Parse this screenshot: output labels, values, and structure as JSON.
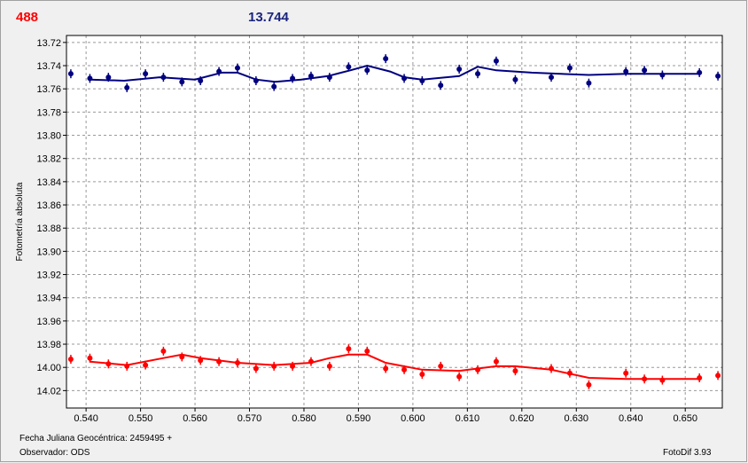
{
  "header": {
    "left": "488",
    "right": "13.744"
  },
  "footer": {
    "axis_note": "Fecha Juliana Geocéntrica: 2459495 +",
    "observer": "Observador: ODS",
    "software": "FotoDif 3.93"
  },
  "chart_data": {
    "type": "scatter",
    "ylabel": "Fotometría absoluta",
    "grid": true,
    "xlim": [
      0.5364,
      0.6568
    ],
    "ylim": [
      14.035,
      13.714
    ],
    "xticks": [
      {
        "value": 0.54,
        "label": "0.540"
      },
      {
        "value": 0.55,
        "label": "0.550"
      },
      {
        "value": 0.56,
        "label": "0.560"
      },
      {
        "value": 0.57,
        "label": "0.570"
      },
      {
        "value": 0.58,
        "label": "0.580"
      },
      {
        "value": 0.59,
        "label": "0.590"
      },
      {
        "value": 0.6,
        "label": "0.600"
      },
      {
        "value": 0.61,
        "label": "0.610"
      },
      {
        "value": 0.62,
        "label": "0.620"
      },
      {
        "value": 0.63,
        "label": "0.630"
      },
      {
        "value": 0.64,
        "label": "0.640"
      },
      {
        "value": 0.65,
        "label": "0.650"
      }
    ],
    "yticks": [
      13.72,
      13.74,
      13.76,
      13.78,
      {
        "value": 13.8,
        "label": "13.80"
      },
      13.82,
      13.84,
      13.86,
      13.88,
      {
        "value": 13.9,
        "label": "13.90"
      },
      13.92,
      13.94,
      13.96,
      13.98,
      {
        "value": 14.0,
        "label": "14.00"
      },
      14.02
    ],
    "series": [
      {
        "color": "#000080",
        "mode": "markers",
        "x": [
          0.5372,
          0.5407,
          0.5441,
          0.5475,
          0.5509,
          0.5542,
          0.5576,
          0.561,
          0.5644,
          0.5678,
          0.5712,
          0.5745,
          0.5779,
          0.5813,
          0.5847,
          0.5882,
          0.5916,
          0.595,
          0.5984,
          0.6017,
          0.6051,
          0.6085,
          0.6119,
          0.6153,
          0.6188,
          0.6254,
          0.6288,
          0.6323,
          0.6391,
          0.6425,
          0.6458,
          0.6526,
          0.656
        ],
        "values": [
          13.747,
          13.751,
          13.75,
          13.759,
          13.747,
          13.75,
          13.754,
          13.753,
          13.745,
          13.742,
          13.753,
          13.758,
          13.751,
          13.749,
          13.75,
          13.741,
          13.744,
          13.734,
          13.751,
          13.753,
          13.757,
          13.743,
          13.747,
          13.736,
          13.752,
          13.75,
          13.742,
          13.755,
          13.745,
          13.744,
          13.748,
          13.746,
          13.749
        ]
      },
      {
        "color": "#ff0000",
        "mode": "markers",
        "x": [
          0.5372,
          0.5407,
          0.5441,
          0.5475,
          0.5509,
          0.5542,
          0.5576,
          0.561,
          0.5644,
          0.5678,
          0.5712,
          0.5745,
          0.5779,
          0.5813,
          0.5847,
          0.5882,
          0.5916,
          0.595,
          0.5984,
          0.6017,
          0.6051,
          0.6085,
          0.6119,
          0.6153,
          0.6188,
          0.6254,
          0.6288,
          0.6323,
          0.6391,
          0.6425,
          0.6458,
          0.6526,
          0.656
        ],
        "values": [
          13.993,
          13.992,
          13.997,
          13.999,
          13.998,
          13.986,
          13.991,
          13.994,
          13.995,
          13.996,
          14.001,
          13.999,
          13.999,
          13.995,
          13.999,
          13.984,
          13.986,
          14.001,
          14.002,
          14.006,
          13.999,
          14.008,
          14.002,
          13.995,
          14.003,
          14.001,
          14.005,
          14.015,
          14.005,
          14.01,
          14.011,
          14.009,
          14.007
        ]
      },
      {
        "color": "#000080",
        "mode": "line",
        "x": [
          0.5407,
          0.547,
          0.5535,
          0.56,
          0.5649,
          0.5678,
          0.5712,
          0.5747,
          0.5795,
          0.5844,
          0.5885,
          0.5916,
          0.5958,
          0.5984,
          0.6017,
          0.6085,
          0.6119,
          0.6153,
          0.6218,
          0.6323,
          0.6391,
          0.6458,
          0.6526
        ],
        "values": [
          13.752,
          13.753,
          13.75,
          13.752,
          13.746,
          13.746,
          13.752,
          13.754,
          13.752,
          13.749,
          13.744,
          13.74,
          13.745,
          13.75,
          13.752,
          13.749,
          13.741,
          13.744,
          13.746,
          13.748,
          13.747,
          13.747,
          13.747
        ]
      },
      {
        "color": "#ff0000",
        "mode": "line",
        "x": [
          0.5407,
          0.5475,
          0.5542,
          0.5576,
          0.561,
          0.5678,
          0.5745,
          0.5813,
          0.5847,
          0.5882,
          0.5916,
          0.595,
          0.6017,
          0.6085,
          0.6153,
          0.6188,
          0.6254,
          0.6323,
          0.6391,
          0.6458,
          0.6526
        ],
        "values": [
          13.995,
          13.998,
          13.992,
          13.989,
          13.992,
          13.996,
          13.998,
          13.996,
          13.992,
          13.989,
          13.989,
          13.996,
          14.002,
          14.003,
          13.999,
          13.999,
          14.002,
          14.009,
          14.01,
          14.01,
          14.01
        ]
      }
    ]
  }
}
